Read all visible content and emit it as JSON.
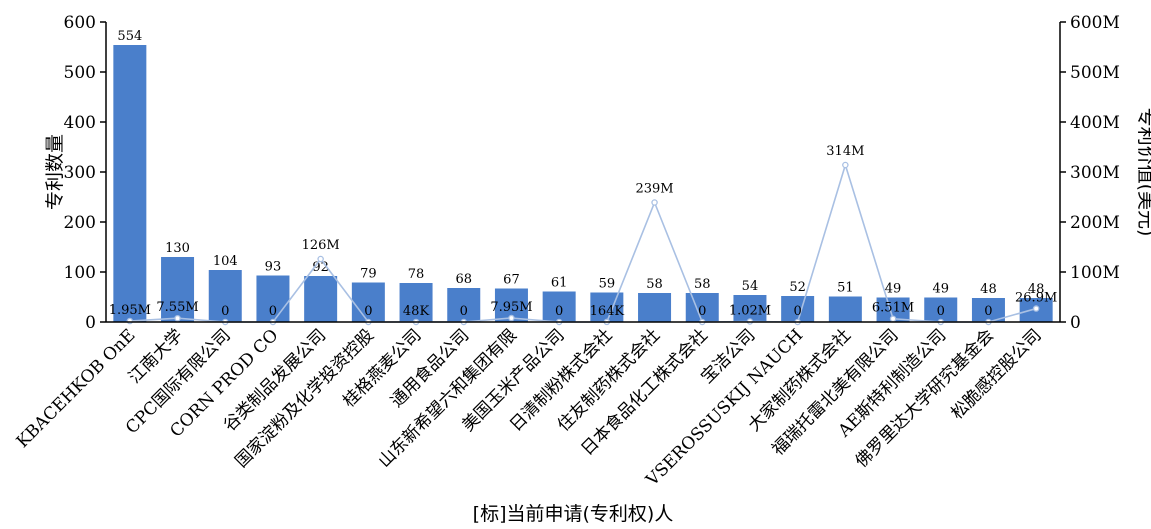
{
  "chart_data": {
    "type": "bar",
    "xlabel": "[标]当前申请(专利权)人",
    "ylabel": "专利数量",
    "y2label": "专利价值(美元)",
    "categories": [
      "KBACEHKOB OnE",
      "江南大学",
      "CPC国际有限公司",
      "CORN PROD CO",
      "谷类制品发展公司",
      "国家淀粉及化学投资控股",
      "桂格燕麦公司",
      "通用食品公司",
      "山东新希望六和集团有限",
      "美国玉米产品公司",
      "日清制粉株式会社",
      "住友制药株式会社",
      "日本食品化工株式会社",
      "宝洁公司",
      "VSEROSSUSKIJ NAUCH",
      "大家制药株式会社",
      "福瑞托雷北美有限公司",
      "AE斯特利制造公司",
      "佛罗里达大学研究基金会",
      "松脆感控股公司"
    ],
    "series": [
      {
        "axis": "left",
        "kind": "bar",
        "values": [
          554,
          130,
          104,
          93,
          92,
          79,
          78,
          68,
          67,
          61,
          59,
          58,
          58,
          54,
          52,
          51,
          49,
          49,
          48,
          48
        ],
        "labels": [
          "554",
          "130",
          "104",
          "93",
          "92",
          "79",
          "78",
          "68",
          "67",
          "61",
          "59",
          "58",
          "58",
          "54",
          "52",
          "51",
          "49",
          "49",
          "48",
          "48"
        ]
      },
      {
        "axis": "right",
        "kind": "line",
        "values": [
          1.95,
          7.55,
          0,
          0,
          126,
          0,
          0.048,
          0,
          7.95,
          0,
          0.164,
          239,
          0,
          1.02,
          0,
          314,
          6.51,
          0,
          0,
          26.9
        ],
        "labels": [
          "1.95M",
          "7.55M",
          "0",
          "0",
          "126M",
          "0",
          "48K",
          "0",
          "7.95M",
          "0",
          "164K",
          "239M",
          "0",
          "1.02M",
          "0",
          "314M",
          "6.51M",
          "0",
          "0",
          "26.9M"
        ]
      }
    ],
    "ylim": [
      0,
      600
    ],
    "y2lim": [
      0,
      600
    ],
    "yticks": [
      "0",
      "100",
      "200",
      "300",
      "400",
      "500",
      "600"
    ],
    "y2ticks": [
      "0",
      "100M",
      "200M",
      "300M",
      "400M",
      "500M",
      "600M"
    ],
    "colors": {
      "bar": "#4a7fcb",
      "line": "#a9c0e3"
    },
    "grid": false
  }
}
